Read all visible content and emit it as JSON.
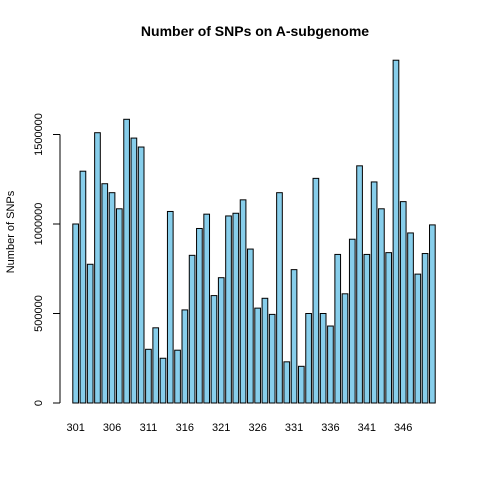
{
  "chart_data": {
    "type": "bar",
    "title": "Number of SNPs on A-subgenome",
    "xlabel": "",
    "ylabel": "Number of SNPs",
    "ylim": [
      0,
      1950000
    ],
    "y_ticks": [
      0,
      500000,
      1000000,
      1500000
    ],
    "y_tick_labels": [
      "0",
      "500000",
      "1000000",
      "1500000"
    ],
    "x_tick_labels": [
      "301",
      "306",
      "311",
      "316",
      "321",
      "326",
      "331",
      "336",
      "341",
      "346"
    ],
    "x_tick_every": 5,
    "bar_color": "#87CEEB",
    "categories": [
      "301",
      "302",
      "303",
      "304",
      "305",
      "306",
      "307",
      "308",
      "309",
      "310",
      "311",
      "312",
      "313",
      "314",
      "315",
      "316",
      "317",
      "318",
      "319",
      "320",
      "321",
      "322",
      "323",
      "324",
      "325",
      "326",
      "327",
      "328",
      "329",
      "330",
      "331",
      "332",
      "333",
      "334",
      "335",
      "336",
      "337",
      "338",
      "339",
      "340",
      "341",
      "342",
      "343",
      "344",
      "345",
      "346",
      "347",
      "348",
      "349",
      "350"
    ],
    "values": [
      1000000,
      1295000,
      775000,
      1510000,
      1225000,
      1175000,
      1085000,
      1585000,
      1480000,
      1430000,
      300000,
      420000,
      250000,
      1070000,
      295000,
      520000,
      825000,
      975000,
      1055000,
      600000,
      700000,
      1045000,
      1060000,
      1135000,
      860000,
      530000,
      585000,
      495000,
      1175000,
      230000,
      745000,
      205000,
      500000,
      1255000,
      500000,
      430000,
      830000,
      610000,
      915000,
      1325000,
      830000,
      1235000,
      1085000,
      840000,
      1915000,
      1125000,
      950000,
      720000,
      835000,
      995000
    ]
  }
}
